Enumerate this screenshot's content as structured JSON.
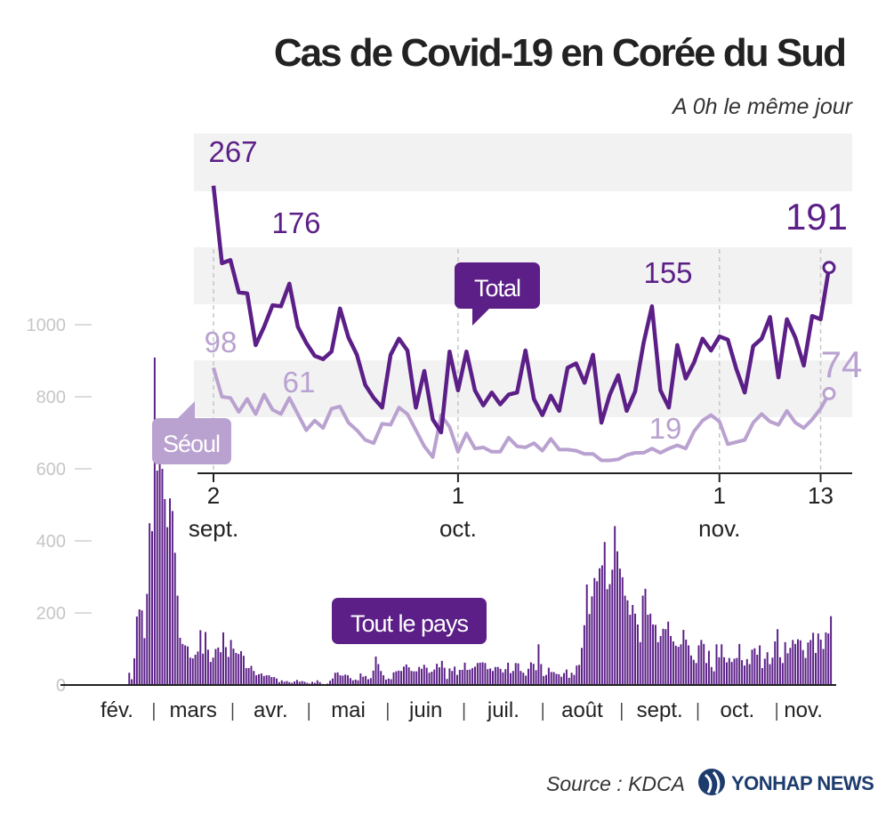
{
  "header": {
    "title": "Cas de Covid-19 en Corée du Sud",
    "subtitle": "A 0h le même jour"
  },
  "footer": {
    "source": "Source : KDCA",
    "brand": "YONHAP NEWS"
  },
  "colors": {
    "total": "#5b1f87",
    "seoul": "#b9a1d0",
    "bars": "#5b1f87",
    "band": "#f2f2f2"
  },
  "chart_data": [
    {
      "type": "bar",
      "title": "Tout le pays",
      "series_label": "Tout le pays",
      "ylim": [
        0,
        1000
      ],
      "yticks": [
        0,
        200,
        400,
        600,
        800,
        1000
      ],
      "month_labels": [
        "fév.",
        "mars",
        "avr.",
        "mai",
        "juin",
        "juil.",
        "août",
        "sept.",
        "oct.",
        "nov."
      ],
      "days_per_month": [
        29,
        31,
        30,
        31,
        30,
        31,
        31,
        30,
        31,
        13
      ],
      "values": [
        1,
        1,
        1,
        1,
        1,
        1,
        1,
        1,
        1,
        1,
        1,
        1,
        1,
        1,
        1,
        1,
        1,
        0,
        2,
        34,
        16,
        74,
        190,
        210,
        207,
        130,
        253,
        449,
        427,
        909,
        595,
        686,
        600,
        516,
        438,
        518,
        483,
        367,
        248,
        131,
        114,
        110,
        107,
        76,
        74,
        84,
        93,
        152,
        87,
        147,
        98,
        64,
        76,
        100,
        104,
        91,
        146,
        105,
        78,
        125,
        101,
        89,
        86,
        94,
        81,
        47,
        47,
        53,
        39,
        27,
        30,
        32,
        25,
        27,
        27,
        22,
        22,
        18,
        8,
        13,
        9,
        11,
        8,
        6,
        10,
        14,
        9,
        11,
        9,
        6,
        4,
        9,
        6,
        13,
        8,
        3,
        2,
        4,
        12,
        18,
        34,
        35,
        27,
        26,
        29,
        27,
        19,
        13,
        15,
        13,
        32,
        23,
        25,
        16,
        19,
        40,
        79,
        58,
        39,
        27,
        15,
        18,
        16,
        35,
        38,
        40,
        39,
        51,
        57,
        49,
        39,
        38,
        38,
        50,
        45,
        56,
        48,
        34,
        37,
        43,
        59,
        49,
        67,
        48,
        17,
        46,
        39,
        51,
        28,
        42,
        42,
        62,
        42,
        43,
        47,
        51,
        61,
        62,
        63,
        61,
        44,
        46,
        39,
        50,
        50,
        45,
        35,
        44,
        62,
        33,
        39,
        61,
        60,
        39,
        34,
        26,
        45,
        63,
        59,
        41,
        113,
        58,
        25,
        28,
        48,
        36,
        36,
        31,
        30,
        23,
        33,
        43,
        20,
        34,
        28,
        54,
        56,
        103,
        166,
        279,
        197,
        246,
        297,
        288,
        324,
        332,
        397,
        266,
        280,
        320,
        441,
        371,
        323,
        299,
        248,
        235,
        195,
        222,
        198,
        168,
        119,
        248,
        267,
        195,
        198,
        168,
        167,
        119,
        136,
        156,
        155,
        176,
        136,
        121,
        109,
        106,
        113,
        153,
        126,
        110,
        82,
        70,
        61,
        110,
        125,
        114,
        61,
        95,
        50,
        38,
        113,
        77,
        113,
        77,
        63,
        75,
        64,
        73,
        75,
        114,
        69,
        54,
        72,
        58,
        98,
        102,
        84,
        110,
        47,
        73,
        91,
        58,
        76,
        121,
        155,
        77,
        61,
        119,
        88,
        103,
        125,
        114,
        127,
        124,
        97,
        75,
        118,
        125,
        145,
        89,
        143,
        126,
        100,
        146,
        143,
        191
      ]
    },
    {
      "type": "line",
      "x_start": "2 sept.",
      "x_ticks": [
        {
          "day": "2",
          "month": "sept."
        },
        {
          "day": "1",
          "month": "oct."
        },
        {
          "day": "1",
          "month": "nov."
        },
        {
          "day": "13",
          "month": ""
        }
      ],
      "ylim": [
        0,
        280
      ],
      "series": [
        {
          "name": "Total",
          "values": [
            267,
            195,
            198,
            168,
            167,
            119,
            136,
            156,
            155,
            176,
            136,
            121,
            109,
            106,
            113,
            153,
            126,
            110,
            82,
            70,
            61,
            110,
            125,
            114,
            61,
            95,
            50,
            38,
            113,
            77,
            113,
            77,
            63,
            75,
            64,
            73,
            75,
            114,
            69,
            54,
            72,
            58,
            98,
            102,
            84,
            110,
            47,
            73,
            91,
            58,
            76,
            121,
            155,
            77,
            61,
            119,
            88,
            103,
            125,
            114,
            127,
            124,
            97,
            75,
            118,
            125,
            145,
            89,
            143,
            126,
            100,
            146,
            143,
            191
          ]
        },
        {
          "name": "Séoul",
          "values": [
            98,
            71,
            70,
            57,
            69,
            55,
            73,
            59,
            55,
            70,
            55,
            40,
            49,
            42,
            60,
            62,
            47,
            40,
            31,
            28,
            46,
            45,
            61,
            55,
            40,
            25,
            15,
            54,
            43,
            20,
            37,
            23,
            24,
            20,
            20,
            33,
            25,
            24,
            28,
            21,
            32,
            22,
            22,
            21,
            18,
            18,
            12,
            12,
            13,
            17,
            19,
            19,
            23,
            19,
            23,
            26,
            23,
            39,
            49,
            54,
            48,
            27,
            29,
            31,
            47,
            55,
            48,
            45,
            58,
            47,
            42,
            50,
            60,
            74
          ]
        }
      ],
      "annotations": {
        "total_values": [
          "267",
          "176",
          "155",
          "191"
        ],
        "seoul_values": [
          "98",
          "61",
          "19",
          "74"
        ],
        "total_tag": "Total",
        "seoul_tag": "Séoul"
      }
    }
  ]
}
